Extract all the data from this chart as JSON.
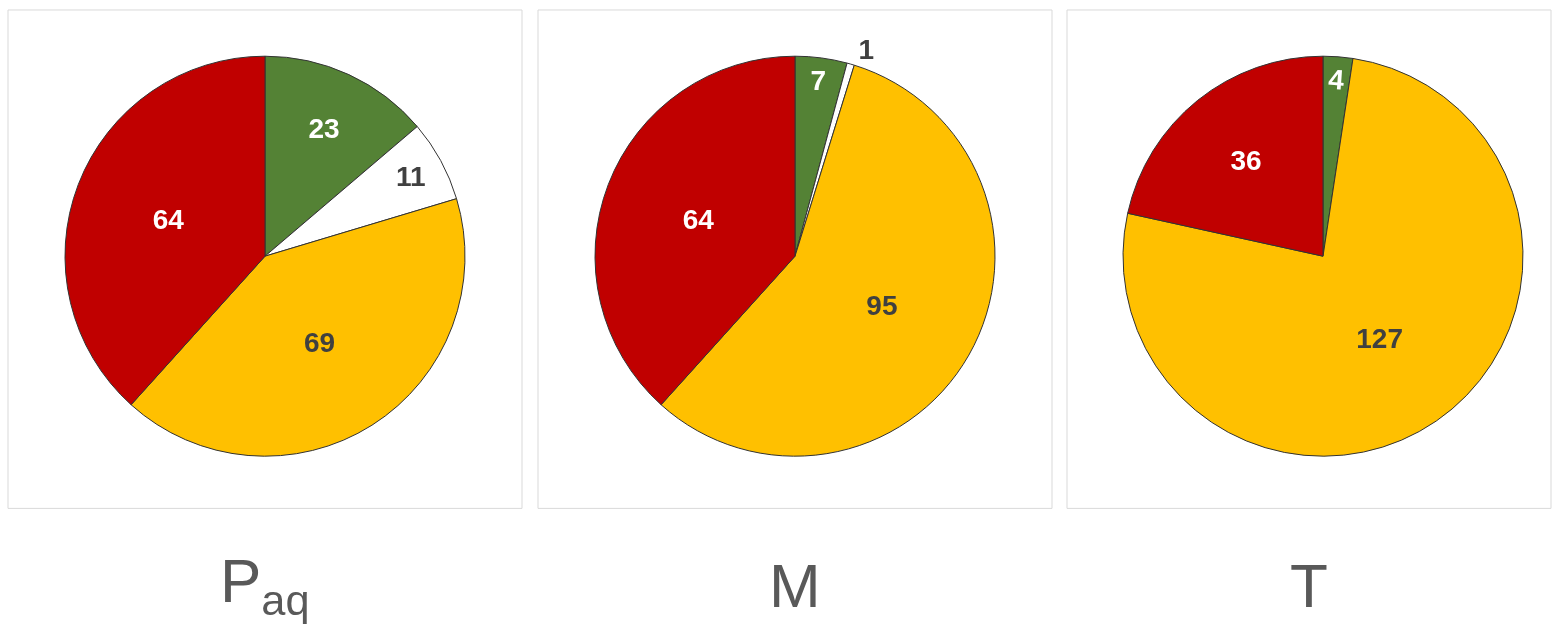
{
  "chart_data": [
    {
      "type": "pie",
      "title": "P$_{aq}$",
      "categories": [
        null,
        null,
        null,
        null
      ],
      "values": [
        23,
        11,
        69,
        64
      ],
      "colors": [
        "#548235",
        "#ffffff",
        "#ffc000",
        "#c00000"
      ],
      "data_labels": true
    },
    {
      "type": "pie",
      "title": "M",
      "categories": [
        null,
        null,
        null,
        null
      ],
      "values": [
        7,
        1,
        95,
        64
      ],
      "colors": [
        "#548235",
        "#ffffff",
        "#ffc000",
        "#c00000"
      ],
      "data_labels": true
    },
    {
      "type": "pie",
      "title": "T",
      "categories": [
        null,
        null,
        null
      ],
      "values": [
        4,
        127,
        36
      ],
      "colors": [
        "#548235",
        "#ffc000",
        "#c00000"
      ],
      "data_labels": true
    }
  ]
}
